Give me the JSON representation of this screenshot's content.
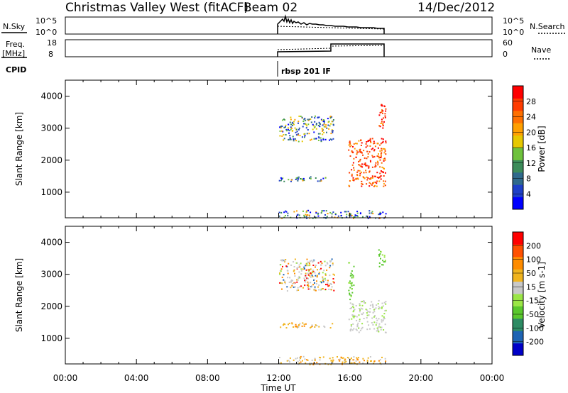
{
  "header": {
    "title": "Christmas Valley West (fitACF)",
    "beam": "Beam 02",
    "date": "14/Dec/2012"
  },
  "aux_panels": {
    "nsky_label": "N.Sky",
    "nsearch_label": "N.Search",
    "freq_label_1": "Freq.",
    "freq_label_2": "[MHz]",
    "nave_label": "Nave",
    "cpid_label": "CPID",
    "cpid_text": "rbsp 201 IF",
    "noise_left_ticks": [
      "10^5",
      "10^0"
    ],
    "noise_right_ticks": [
      "10^5",
      "10^0"
    ],
    "freq_left_ticks": [
      "18",
      "8"
    ],
    "nave_right_ticks": [
      "60",
      "0"
    ]
  },
  "time_axis": {
    "label": "Time UT",
    "ticks": [
      "00:00",
      "04:00",
      "08:00",
      "12:00",
      "16:00",
      "20:00",
      "00:00"
    ]
  },
  "chart_data": [
    {
      "type": "heatmap",
      "panel": "power",
      "ylabel": "Slant Range [km]",
      "ytick_labels": [
        "1000",
        "2000",
        "3000",
        "4000"
      ],
      "ylim": [
        200,
        4500
      ],
      "xlim_hours": [
        0,
        24
      ],
      "colorbar": {
        "label": "Power [dB]",
        "tick_labels": [
          "4",
          "8",
          "12",
          "16",
          "20",
          "24",
          "28"
        ],
        "colors": [
          "#0000ff",
          "#1e40c8",
          "#2f6a8c",
          "#3c8c5a",
          "#6ec23c",
          "#e6c800",
          "#ffa000",
          "#ff7000",
          "#ff3c00",
          "#ff0000"
        ]
      },
      "regions": [
        {
          "t": [
            12.0,
            15.1
          ],
          "r": [
            2600,
            3400
          ],
          "level": "mixed-mid"
        },
        {
          "t": [
            12.0,
            15.0
          ],
          "r": [
            1350,
            1500
          ],
          "level": "low"
        },
        {
          "t": [
            12.0,
            18.0
          ],
          "r": [
            200,
            450
          ],
          "level": "low"
        },
        {
          "t": [
            15.9,
            18.0
          ],
          "r": [
            1200,
            2700
          ],
          "level": "high"
        },
        {
          "t": [
            17.6,
            18.0
          ],
          "r": [
            3000,
            3800
          ],
          "level": "high"
        }
      ]
    },
    {
      "type": "heatmap",
      "panel": "velocity",
      "ylabel": "Slant Range [km]",
      "ytick_labels": [
        "1000",
        "2000",
        "3000",
        "4000"
      ],
      "ylim": [
        200,
        4500
      ],
      "xlim_hours": [
        0,
        24
      ],
      "colorbar": {
        "label": "Velocity [m s-1]",
        "tick_labels": [
          "200",
          "100",
          "50",
          "15",
          "-15",
          "-50",
          "-100",
          "-200"
        ],
        "colors": [
          "#0000c8",
          "#1e64b4",
          "#2d8c64",
          "#5ac82d",
          "#9be646",
          "#c8c8c8",
          "#f0b41e",
          "#ff8c00",
          "#ff5000",
          "#ff0000"
        ]
      },
      "regions": [
        {
          "t": [
            12.0,
            15.1
          ],
          "r": [
            2500,
            3500
          ],
          "level": "mixed-grey"
        },
        {
          "t": [
            12.0,
            15.0
          ],
          "r": [
            1350,
            1500
          ],
          "level": "mixed-orange"
        },
        {
          "t": [
            12.0,
            18.0
          ],
          "r": [
            200,
            450
          ],
          "level": "orange"
        },
        {
          "t": [
            15.9,
            18.0
          ],
          "r": [
            1200,
            2200
          ],
          "level": "grey"
        },
        {
          "t": [
            15.9,
            16.2
          ],
          "r": [
            2200,
            3400
          ],
          "level": "green"
        },
        {
          "t": [
            17.6,
            18.0
          ],
          "r": [
            3200,
            3800
          ],
          "level": "green"
        }
      ]
    }
  ]
}
